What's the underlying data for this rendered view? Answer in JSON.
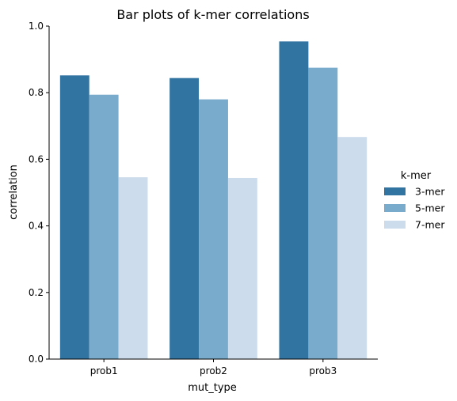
{
  "chart_data": {
    "type": "bar",
    "title": "Bar plots of k-mer correlations",
    "xlabel": "mut_type",
    "ylabel": "correlation",
    "ylim": [
      0,
      1.0
    ],
    "yticks": [
      0.0,
      0.2,
      0.4,
      0.6,
      0.8,
      1.0
    ],
    "ytick_labels": [
      "0.0",
      "0.2",
      "0.4",
      "0.6",
      "0.8",
      "1.0"
    ],
    "categories": [
      "prob1",
      "prob2",
      "prob3"
    ],
    "grid": false,
    "legend": {
      "title": "k-mer",
      "placement": "right"
    },
    "series": [
      {
        "name": "3-mer",
        "color": "#3274a1",
        "values": [
          0.852,
          0.844,
          0.954
        ]
      },
      {
        "name": "5-mer",
        "color": "#79abcc",
        "values": [
          0.794,
          0.78,
          0.875
        ]
      },
      {
        "name": "7-mer",
        "color": "#ccdcec",
        "values": [
          0.546,
          0.544,
          0.667
        ]
      }
    ]
  }
}
